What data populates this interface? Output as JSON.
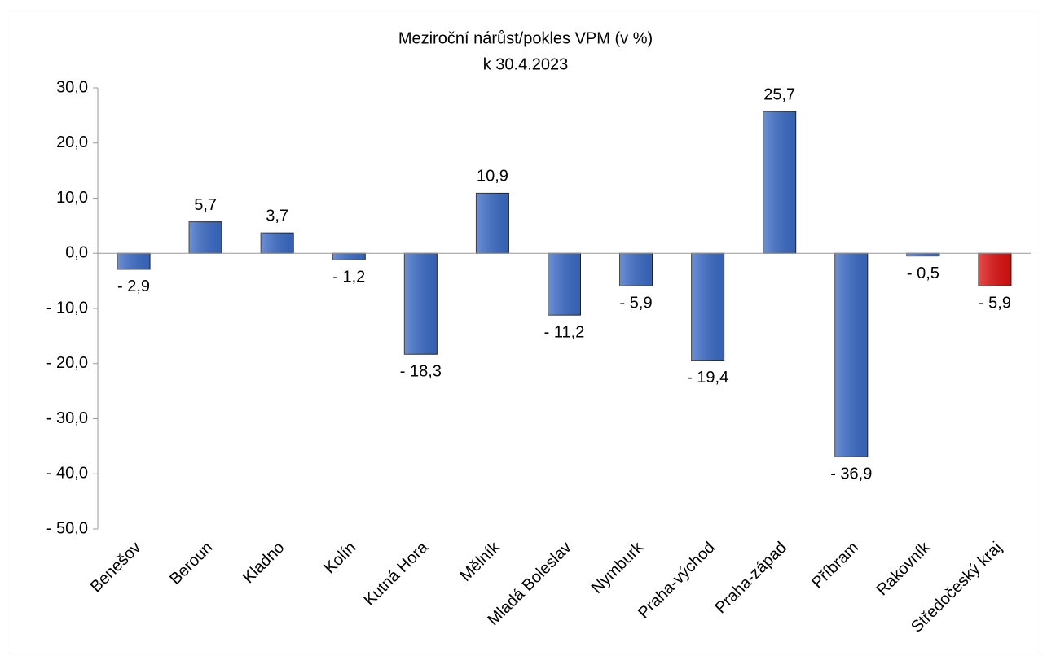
{
  "chart_data": {
    "type": "bar",
    "title": "Meziroční nárůst/pokles VPM (v %)",
    "subtitle": "k 30.4.2023",
    "categories": [
      "Benešov",
      "Beroun",
      "Kladno",
      "Kolín",
      "Kutná Hora",
      "Mělník",
      "Mladá Boleslav",
      "Nymburk",
      "Praha-východ",
      "Praha-západ",
      "Příbram",
      "Rakovník",
      "Středočeský kraj"
    ],
    "values": [
      -2.9,
      5.7,
      3.7,
      -1.2,
      -18.3,
      10.9,
      -11.2,
      -5.9,
      -19.4,
      25.7,
      -36.9,
      -0.5,
      -5.9
    ],
    "value_labels": [
      "- 2,9",
      "5,7",
      "3,7",
      "- 1,2",
      "- 18,3",
      "10,9",
      "- 11,2",
      "- 5,9",
      "- 19,4",
      "25,7",
      "- 36,9",
      "- 0,5",
      "- 5,9"
    ],
    "colors": [
      "#3b6cc9",
      "#3b6cc9",
      "#3b6cc9",
      "#3b6cc9",
      "#3b6cc9",
      "#3b6cc9",
      "#3b6cc9",
      "#3b6cc9",
      "#3b6cc9",
      "#3b6cc9",
      "#3b6cc9",
      "#3b6cc9",
      "#e01010"
    ],
    "ylim": [
      -50,
      30
    ],
    "yticks": [
      {
        "value": -50,
        "label": "- 50,0"
      },
      {
        "value": -40,
        "label": "- 40,0"
      },
      {
        "value": -30,
        "label": "- 30,0"
      },
      {
        "value": -20,
        "label": "- 20,0"
      },
      {
        "value": -10,
        "label": "- 10,0"
      },
      {
        "value": 0,
        "label": "0,0"
      },
      {
        "value": 10,
        "label": "10,0"
      },
      {
        "value": 20,
        "label": "20,0"
      },
      {
        "value": 30,
        "label": "30,0"
      }
    ],
    "grid": false
  }
}
